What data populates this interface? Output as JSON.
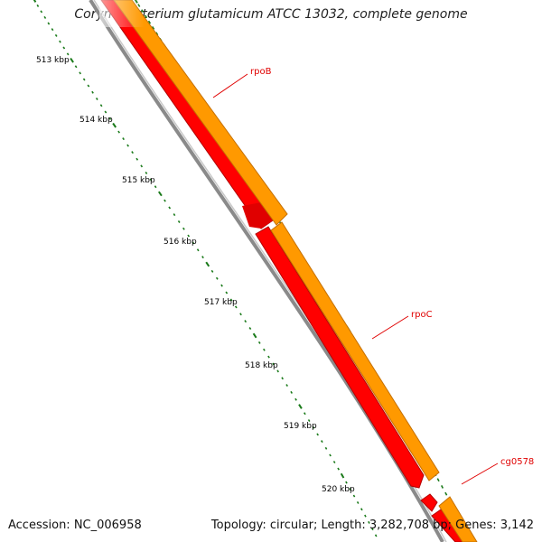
{
  "title": "Corynebacterium glutamicum ATCC 13032, complete genome",
  "footer": {
    "accession": "Accession: NC_006958",
    "summary": "Topology: circular; Length: 3,282,708 bp; Genes: 3,142"
  },
  "kbp_labels": [
    "513 kbp",
    "514 kbp",
    "515 kbp",
    "516 kbp",
    "517 kbp",
    "518 kbp",
    "519 kbp",
    "520 kbp"
  ],
  "genes": [
    {
      "name": "rpoB",
      "label": "rpoB"
    },
    {
      "name": "rpoC",
      "label": "rpoC"
    },
    {
      "name": "cg0578",
      "label": "cg0578"
    }
  ],
  "colors": {
    "cds": "#ff0000",
    "gene": "#ff9900",
    "backbone": "#888888",
    "ticks": "#1a7a1a",
    "label": "#e00000"
  }
}
